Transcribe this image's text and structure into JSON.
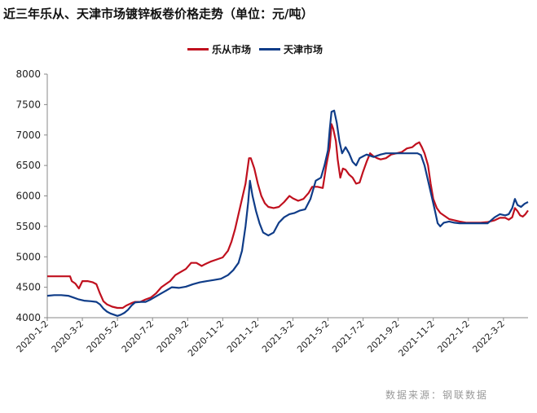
{
  "title": "近三年乐从、天津市场镀锌板卷价格走势（单位：元/吨）",
  "source": "数据来源：钢联数据",
  "chart_data": {
    "type": "line",
    "title": "近三年乐从、天津市场镀锌板卷价格走势（单位：元/吨）",
    "xlabel": "",
    "ylabel": "",
    "ylim": [
      4000,
      8000
    ],
    "yticks": [
      4000,
      4500,
      5000,
      5500,
      6000,
      6500,
      7000,
      7500,
      8000
    ],
    "xticks": [
      "2020-1-2",
      "2020-3-2",
      "2020-5-2",
      "2020-7-2",
      "2020-9-2",
      "2020-11-2",
      "2021-1-2",
      "2021-3-2",
      "2021-5-2",
      "2021-7-2",
      "2021-9-2",
      "2021-11-2",
      "2022-1-2",
      "2022-3-2"
    ],
    "xlim_months": [
      0,
      27.4
    ],
    "legend_position": "top-center",
    "grid": false,
    "series": [
      {
        "name": "乐从市场",
        "color": "#c0101e",
        "points": [
          [
            0.0,
            4680
          ],
          [
            0.5,
            4680
          ],
          [
            1.0,
            4680
          ],
          [
            1.3,
            4680
          ],
          [
            1.4,
            4600
          ],
          [
            1.6,
            4560
          ],
          [
            1.8,
            4480
          ],
          [
            2.0,
            4600
          ],
          [
            2.3,
            4600
          ],
          [
            2.6,
            4580
          ],
          [
            2.8,
            4550
          ],
          [
            3.0,
            4400
          ],
          [
            3.2,
            4270
          ],
          [
            3.4,
            4220
          ],
          [
            3.7,
            4180
          ],
          [
            4.0,
            4160
          ],
          [
            4.3,
            4160
          ],
          [
            4.5,
            4200
          ],
          [
            4.8,
            4240
          ],
          [
            5.0,
            4260
          ],
          [
            5.3,
            4260
          ],
          [
            5.6,
            4300
          ],
          [
            5.9,
            4330
          ],
          [
            6.2,
            4400
          ],
          [
            6.5,
            4500
          ],
          [
            6.8,
            4560
          ],
          [
            7.0,
            4600
          ],
          [
            7.3,
            4700
          ],
          [
            7.6,
            4750
          ],
          [
            7.9,
            4800
          ],
          [
            8.2,
            4900
          ],
          [
            8.5,
            4900
          ],
          [
            8.8,
            4850
          ],
          [
            9.0,
            4880
          ],
          [
            9.3,
            4920
          ],
          [
            9.6,
            4950
          ],
          [
            10.0,
            4990
          ],
          [
            10.3,
            5100
          ],
          [
            10.5,
            5250
          ],
          [
            10.7,
            5450
          ],
          [
            10.9,
            5700
          ],
          [
            11.1,
            5950
          ],
          [
            11.3,
            6200
          ],
          [
            11.5,
            6620
          ],
          [
            11.6,
            6620
          ],
          [
            11.8,
            6450
          ],
          [
            12.0,
            6200
          ],
          [
            12.2,
            6000
          ],
          [
            12.4,
            5880
          ],
          [
            12.6,
            5820
          ],
          [
            12.9,
            5800
          ],
          [
            13.2,
            5820
          ],
          [
            13.5,
            5900
          ],
          [
            13.8,
            6000
          ],
          [
            14.0,
            5960
          ],
          [
            14.3,
            5920
          ],
          [
            14.6,
            5950
          ],
          [
            14.9,
            6050
          ],
          [
            15.1,
            6150
          ],
          [
            15.4,
            6150
          ],
          [
            15.7,
            6130
          ],
          [
            15.9,
            6500
          ],
          [
            16.1,
            6800
          ],
          [
            16.2,
            7180
          ],
          [
            16.3,
            7100
          ],
          [
            16.45,
            6900
          ],
          [
            16.55,
            6600
          ],
          [
            16.7,
            6300
          ],
          [
            16.85,
            6450
          ],
          [
            17.0,
            6430
          ],
          [
            17.2,
            6350
          ],
          [
            17.4,
            6300
          ],
          [
            17.6,
            6200
          ],
          [
            17.8,
            6220
          ],
          [
            18.0,
            6400
          ],
          [
            18.2,
            6560
          ],
          [
            18.4,
            6700
          ],
          [
            18.6,
            6650
          ],
          [
            18.8,
            6620
          ],
          [
            19.0,
            6600
          ],
          [
            19.3,
            6620
          ],
          [
            19.6,
            6680
          ],
          [
            19.9,
            6700
          ],
          [
            20.2,
            6720
          ],
          [
            20.5,
            6780
          ],
          [
            20.8,
            6800
          ],
          [
            21.0,
            6850
          ],
          [
            21.2,
            6880
          ],
          [
            21.35,
            6800
          ],
          [
            21.5,
            6700
          ],
          [
            21.7,
            6500
          ],
          [
            21.85,
            6200
          ],
          [
            22.0,
            5950
          ],
          [
            22.2,
            5800
          ],
          [
            22.4,
            5720
          ],
          [
            22.6,
            5680
          ],
          [
            22.9,
            5620
          ],
          [
            23.2,
            5600
          ],
          [
            23.5,
            5580
          ],
          [
            23.9,
            5560
          ],
          [
            24.3,
            5560
          ],
          [
            24.7,
            5560
          ],
          [
            25.1,
            5570
          ],
          [
            25.5,
            5600
          ],
          [
            25.8,
            5640
          ],
          [
            26.1,
            5640
          ],
          [
            26.3,
            5610
          ],
          [
            26.5,
            5650
          ],
          [
            26.65,
            5800
          ],
          [
            26.8,
            5750
          ],
          [
            26.95,
            5680
          ],
          [
            27.1,
            5660
          ],
          [
            27.25,
            5700
          ],
          [
            27.4,
            5760
          ]
        ]
      },
      {
        "name": "天津市场",
        "color": "#0f3c88",
        "points": [
          [
            0.0,
            4360
          ],
          [
            0.4,
            4370
          ],
          [
            0.8,
            4370
          ],
          [
            1.2,
            4360
          ],
          [
            1.5,
            4330
          ],
          [
            1.8,
            4300
          ],
          [
            2.1,
            4280
          ],
          [
            2.5,
            4270
          ],
          [
            2.8,
            4260
          ],
          [
            3.0,
            4220
          ],
          [
            3.2,
            4150
          ],
          [
            3.4,
            4100
          ],
          [
            3.6,
            4070
          ],
          [
            3.8,
            4050
          ],
          [
            4.0,
            4030
          ],
          [
            4.2,
            4050
          ],
          [
            4.4,
            4080
          ],
          [
            4.6,
            4130
          ],
          [
            4.8,
            4200
          ],
          [
            5.0,
            4250
          ],
          [
            5.3,
            4260
          ],
          [
            5.6,
            4260
          ],
          [
            5.9,
            4300
          ],
          [
            6.2,
            4350
          ],
          [
            6.5,
            4400
          ],
          [
            6.8,
            4450
          ],
          [
            7.1,
            4500
          ],
          [
            7.5,
            4490
          ],
          [
            7.9,
            4510
          ],
          [
            8.3,
            4550
          ],
          [
            8.7,
            4580
          ],
          [
            9.1,
            4600
          ],
          [
            9.5,
            4620
          ],
          [
            9.9,
            4640
          ],
          [
            10.3,
            4700
          ],
          [
            10.6,
            4780
          ],
          [
            10.9,
            4900
          ],
          [
            11.1,
            5100
          ],
          [
            11.3,
            5500
          ],
          [
            11.45,
            5900
          ],
          [
            11.55,
            6250
          ],
          [
            11.7,
            6000
          ],
          [
            11.9,
            5750
          ],
          [
            12.1,
            5550
          ],
          [
            12.3,
            5400
          ],
          [
            12.6,
            5350
          ],
          [
            12.9,
            5400
          ],
          [
            13.2,
            5560
          ],
          [
            13.5,
            5650
          ],
          [
            13.8,
            5700
          ],
          [
            14.1,
            5720
          ],
          [
            14.4,
            5760
          ],
          [
            14.7,
            5780
          ],
          [
            15.0,
            5950
          ],
          [
            15.3,
            6250
          ],
          [
            15.6,
            6300
          ],
          [
            15.8,
            6500
          ],
          [
            16.0,
            6750
          ],
          [
            16.1,
            7100
          ],
          [
            16.2,
            7380
          ],
          [
            16.35,
            7400
          ],
          [
            16.5,
            7200
          ],
          [
            16.65,
            6900
          ],
          [
            16.8,
            6700
          ],
          [
            17.0,
            6800
          ],
          [
            17.2,
            6700
          ],
          [
            17.4,
            6560
          ],
          [
            17.6,
            6500
          ],
          [
            17.8,
            6620
          ],
          [
            18.0,
            6650
          ],
          [
            18.2,
            6680
          ],
          [
            18.4,
            6660
          ],
          [
            18.6,
            6640
          ],
          [
            18.8,
            6660
          ],
          [
            19.0,
            6680
          ],
          [
            19.3,
            6700
          ],
          [
            19.6,
            6700
          ],
          [
            19.9,
            6700
          ],
          [
            20.2,
            6700
          ],
          [
            20.5,
            6700
          ],
          [
            20.8,
            6700
          ],
          [
            21.1,
            6700
          ],
          [
            21.3,
            6670
          ],
          [
            21.5,
            6500
          ],
          [
            21.7,
            6250
          ],
          [
            21.9,
            6000
          ],
          [
            22.1,
            5750
          ],
          [
            22.25,
            5550
          ],
          [
            22.4,
            5500
          ],
          [
            22.6,
            5560
          ],
          [
            22.9,
            5580
          ],
          [
            23.2,
            5560
          ],
          [
            23.5,
            5550
          ],
          [
            23.9,
            5550
          ],
          [
            24.3,
            5550
          ],
          [
            24.7,
            5550
          ],
          [
            25.1,
            5550
          ],
          [
            25.5,
            5650
          ],
          [
            25.8,
            5700
          ],
          [
            26.1,
            5680
          ],
          [
            26.3,
            5700
          ],
          [
            26.5,
            5800
          ],
          [
            26.65,
            5950
          ],
          [
            26.8,
            5850
          ],
          [
            27.0,
            5820
          ],
          [
            27.2,
            5870
          ],
          [
            27.4,
            5900
          ]
        ]
      }
    ]
  }
}
